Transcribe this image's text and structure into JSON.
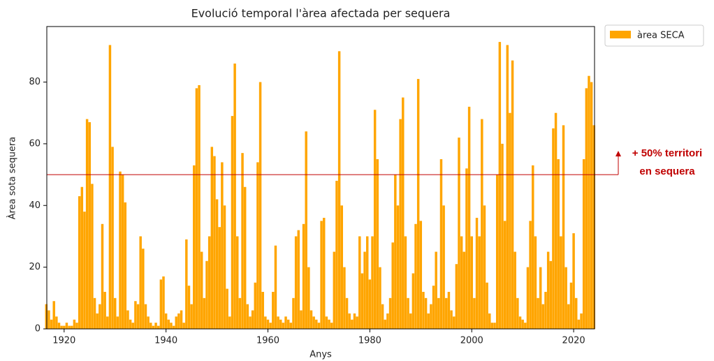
{
  "chart_data": {
    "type": "bar",
    "title": "Evolució temporal l'àrea afectada per sequera",
    "x_label": "Anys",
    "y_label": "Àrea sota sequera",
    "series": [
      {
        "name": "àrea SECA",
        "color": "#ffa500",
        "x": [
          1916.5,
          1917,
          1917.5,
          1918,
          1918.5,
          1919,
          1919.5,
          1920,
          1920.5,
          1921,
          1921.5,
          1922,
          1922.5,
          1923,
          1923.5,
          1924,
          1924.5,
          1925,
          1925.5,
          1926,
          1926.5,
          1927,
          1927.5,
          1928,
          1928.5,
          1929,
          1929.5,
          1930,
          1930.5,
          1931,
          1931.5,
          1932,
          1932.5,
          1933,
          1933.5,
          1934,
          1934.5,
          1935,
          1935.5,
          1936,
          1936.5,
          1937,
          1937.5,
          1938,
          1938.5,
          1939,
          1939.5,
          1940,
          1940.5,
          1941,
          1941.5,
          1942,
          1942.5,
          1943,
          1943.5,
          1944,
          1944.5,
          1945,
          1945.5,
          1946,
          1946.5,
          1947,
          1947.5,
          1948,
          1948.5,
          1949,
          1949.5,
          1950,
          1950.5,
          1951,
          1951.5,
          1952,
          1952.5,
          1953,
          1953.5,
          1954,
          1954.5,
          1955,
          1955.5,
          1956,
          1956.5,
          1957,
          1957.5,
          1958,
          1958.5,
          1959,
          1959.5,
          1960,
          1960.5,
          1961,
          1961.5,
          1962,
          1962.5,
          1963,
          1963.5,
          1964,
          1964.5,
          1965,
          1965.5,
          1966,
          1966.5,
          1967,
          1967.5,
          1968,
          1968.5,
          1969,
          1969.5,
          1970,
          1970.5,
          1971,
          1971.5,
          1972,
          1972.5,
          1973,
          1973.5,
          1974,
          1974.5,
          1975,
          1975.5,
          1976,
          1976.5,
          1977,
          1977.5,
          1978,
          1978.5,
          1979,
          1979.5,
          1980,
          1980.5,
          1981,
          1981.5,
          1982,
          1982.5,
          1983,
          1983.5,
          1984,
          1984.5,
          1985,
          1985.5,
          1986,
          1986.5,
          1987,
          1987.5,
          1988,
          1988.5,
          1989,
          1989.5,
          1990,
          1990.5,
          1991,
          1991.5,
          1992,
          1992.5,
          1993,
          1993.5,
          1994,
          1994.5,
          1995,
          1995.5,
          1996,
          1996.5,
          1997,
          1997.5,
          1998,
          1998.5,
          1999,
          1999.5,
          2000,
          2000.5,
          2001,
          2001.5,
          2002,
          2002.5,
          2003,
          2003.5,
          2004,
          2004.5,
          2005,
          2005.5,
          2006,
          2006.5,
          2007,
          2007.5,
          2008,
          2008.5,
          2009,
          2009.5,
          2010,
          2010.5,
          2011,
          2011.5,
          2012,
          2012.5,
          2013,
          2013.5,
          2014,
          2014.5,
          2015,
          2015.5,
          2016,
          2016.5,
          2017,
          2017.5,
          2018,
          2018.5,
          2019,
          2019.5,
          2020,
          2020.5,
          2021,
          2021.5,
          2022,
          2022.5,
          2023,
          2023.5,
          2024
        ],
        "values": [
          8,
          6,
          3,
          9,
          4,
          2,
          1,
          1,
          2,
          1,
          1,
          3,
          2,
          43,
          46,
          38,
          68,
          67,
          47,
          10,
          5,
          8,
          34,
          12,
          4,
          92,
          59,
          10,
          4,
          51,
          50,
          41,
          6,
          3,
          2,
          9,
          8,
          30,
          26,
          8,
          4,
          2,
          1,
          2,
          1,
          16,
          17,
          5,
          3,
          2,
          1,
          4,
          5,
          6,
          2,
          29,
          14,
          8,
          53,
          78,
          79,
          25,
          10,
          22,
          30,
          59,
          56,
          42,
          33,
          54,
          40,
          13,
          4,
          69,
          86,
          30,
          10,
          57,
          46,
          8,
          4,
          6,
          15,
          54,
          80,
          12,
          4,
          3,
          2,
          12,
          27,
          4,
          3,
          2,
          4,
          3,
          2,
          10,
          30,
          32,
          6,
          34,
          64,
          20,
          6,
          4,
          3,
          2,
          35,
          36,
          4,
          3,
          2,
          25,
          48,
          90,
          40,
          20,
          10,
          5,
          3,
          5,
          4,
          30,
          18,
          25,
          30,
          16,
          30,
          71,
          55,
          20,
          8,
          3,
          5,
          10,
          28,
          50,
          40,
          68,
          75,
          30,
          10,
          5,
          18,
          34,
          81,
          35,
          12,
          10,
          5,
          8,
          14,
          25,
          10,
          55,
          40,
          10,
          12,
          6,
          4,
          21,
          62,
          30,
          25,
          52,
          72,
          30,
          10,
          36,
          30,
          68,
          40,
          15,
          5,
          2,
          2,
          50,
          93,
          60,
          35,
          92,
          70,
          87,
          25,
          10,
          4,
          3,
          2,
          20,
          35,
          53,
          30,
          10,
          20,
          8,
          12,
          25,
          22,
          65,
          70,
          55,
          30,
          66,
          20,
          8,
          15,
          31,
          10,
          3,
          5,
          55,
          78,
          82,
          80,
          66
        ]
      }
    ],
    "xlim": [
      1916.6,
      2024.1
    ],
    "ylim": [
      0,
      98
    ],
    "xticks": [
      1920,
      1940,
      1960,
      1980,
      2000,
      2020
    ],
    "yticks": [
      0,
      20,
      40,
      60,
      80
    ],
    "reference_line": {
      "value": 50,
      "color": "#c00000"
    },
    "annotation": [
      "+ 50% territori",
      "en sequera"
    ],
    "legend": "upper right outside"
  }
}
